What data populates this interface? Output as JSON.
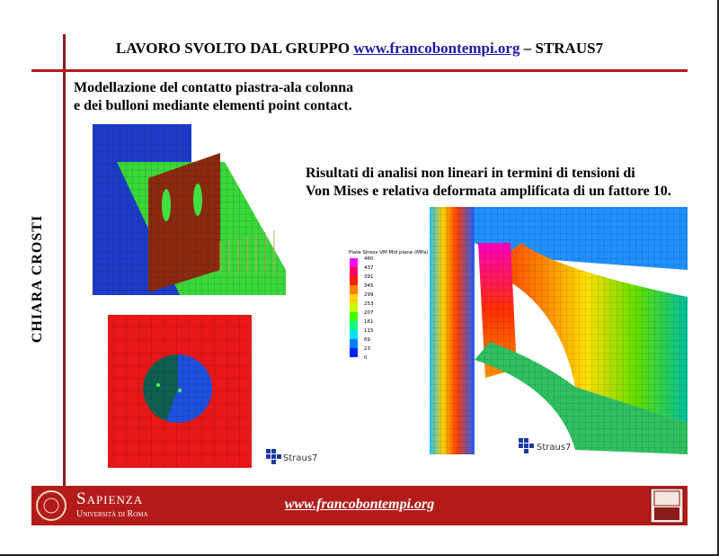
{
  "header": {
    "title_prefix": "LAVORO SVOLTO DAL GRUPPO",
    "link": "www.francobontempi.org",
    "title_suffix": "– STRAUS7"
  },
  "sidebar": {
    "author": "CHIARA CROSTI"
  },
  "left_caption": {
    "lines": [
      "Modellazione del contatto piastra-ala colonna",
      "e dei bulloni mediante elementi point contact."
    ]
  },
  "right_caption": {
    "lines": [
      "Risultati di analisi non lineari  in termini di tensioni di",
      "Von Mises e relativa deformata amplificata di un fattore 10."
    ]
  },
  "legend": {
    "title": "Plate Stress:VM Mid plane (MPa)",
    "labels": [
      460,
      437,
      391,
      345,
      299,
      253,
      207,
      161,
      115,
      69,
      23,
      0
    ]
  },
  "watermarks": [
    "Straus7",
    "Straus7"
  ],
  "footer": {
    "logo_name": "Sapienza",
    "logo_sub": "Università di Roma",
    "url": "www.francobontempi.org"
  }
}
